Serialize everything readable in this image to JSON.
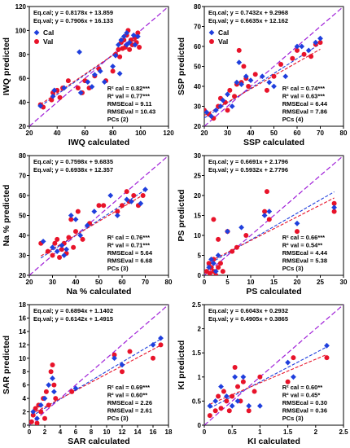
{
  "colors": {
    "cal": "#1f3fdd",
    "val": "#e8132a",
    "one_to_one": "#a020d8",
    "cal_fit": "#1f3fdd",
    "val_fit": "#e8132a"
  },
  "legend": {
    "cal": "Cal",
    "val": "Val"
  },
  "chart_data": [
    {
      "id": "iwq",
      "type": "scatter",
      "xlabel": "IWQ calculated",
      "ylabel": "IWQ predicted",
      "xlim": [
        20,
        120
      ],
      "ylim": [
        20,
        120
      ],
      "xticks": [
        "20",
        "40",
        "60",
        "80",
        "100",
        "120"
      ],
      "yticks": [
        "20",
        "40",
        "60",
        "80",
        "100",
        "120"
      ],
      "eq_cal": "Eq.cal; y = 0.8178x + 13.859",
      "eq_val": "Eq.val; y = 0.7906x + 16.133",
      "fit_cal": [
        0.8178,
        13.859
      ],
      "fit_val": [
        0.7906,
        16.133
      ],
      "stats": [
        "R² cal = 0.82***",
        "R² val = 0.77***",
        "RMSEcal = 9.11",
        "RMSEval = 10.43",
        "PCs (2)"
      ],
      "show_legend": true,
      "cal": [
        [
          28,
          37
        ],
        [
          37,
          45
        ],
        [
          38,
          50
        ],
        [
          45,
          52
        ],
        [
          56,
          82
        ],
        [
          57,
          48
        ],
        [
          62,
          57
        ],
        [
          65,
          53
        ],
        [
          67,
          63
        ],
        [
          71,
          66
        ],
        [
          74,
          57
        ],
        [
          80,
          70
        ],
        [
          82,
          79
        ],
        [
          84,
          88
        ],
        [
          85,
          64
        ],
        [
          88,
          95
        ],
        [
          90,
          88
        ],
        [
          92,
          90
        ],
        [
          95,
          96
        ],
        [
          96,
          88
        ],
        [
          98,
          95
        ],
        [
          90,
          98
        ],
        [
          86,
          92
        ]
      ],
      "val": [
        [
          28,
          38
        ],
        [
          30,
          36
        ],
        [
          36,
          42
        ],
        [
          37,
          48
        ],
        [
          40,
          50
        ],
        [
          42,
          44
        ],
        [
          44,
          52
        ],
        [
          48,
          58
        ],
        [
          55,
          52
        ],
        [
          58,
          48
        ],
        [
          60,
          58
        ],
        [
          63,
          52
        ],
        [
          67,
          62
        ],
        [
          70,
          68
        ],
        [
          75,
          58
        ],
        [
          80,
          66
        ],
        [
          82,
          80
        ],
        [
          84,
          84
        ],
        [
          86,
          90
        ],
        [
          88,
          92
        ],
        [
          89,
          86
        ],
        [
          90,
          96
        ],
        [
          92,
          84
        ],
        [
          93,
          92
        ],
        [
          94,
          88
        ],
        [
          96,
          94
        ],
        [
          97,
          90
        ],
        [
          99,
          86
        ],
        [
          98,
          98
        ],
        [
          91,
          100
        ],
        [
          87,
          85
        ],
        [
          85,
          78
        ]
      ]
    },
    {
      "id": "ssp",
      "type": "scatter",
      "xlabel": "SSP calculated",
      "ylabel": "SSP predicted",
      "xlim": [
        20,
        80
      ],
      "ylim": [
        20,
        80
      ],
      "xticks": [
        "20",
        "30",
        "40",
        "50",
        "60",
        "70",
        "80"
      ],
      "yticks": [
        "20",
        "30",
        "40",
        "50",
        "60",
        "70",
        "80"
      ],
      "eq_cal": "Eq.cal; y = 0.7432x + 9.2968",
      "eq_val": "Eq.val; y = 0.6635x + 12.162",
      "fit_cal": [
        0.7432,
        9.2968
      ],
      "fit_val": [
        0.6635,
        12.162
      ],
      "stats": [
        "R² cal = 0.74***",
        "R² val = 0.63***",
        "RMSEcal = 6.44",
        "RMSEval = 7.86",
        "PCs (4)"
      ],
      "show_legend": true,
      "cal": [
        [
          21,
          27
        ],
        [
          23,
          25
        ],
        [
          25,
          28
        ],
        [
          27,
          30
        ],
        [
          28,
          33
        ],
        [
          30,
          36
        ],
        [
          32,
          30
        ],
        [
          34,
          42
        ],
        [
          35,
          52
        ],
        [
          36,
          41
        ],
        [
          38,
          45
        ],
        [
          40,
          43
        ],
        [
          45,
          45
        ],
        [
          48,
          42
        ],
        [
          50,
          40
        ],
        [
          55,
          45
        ],
        [
          60,
          60
        ],
        [
          62,
          60
        ],
        [
          65,
          58
        ],
        [
          68,
          62
        ],
        [
          70,
          64
        ]
      ],
      "val": [
        [
          20,
          28
        ],
        [
          22,
          26
        ],
        [
          24,
          24
        ],
        [
          26,
          30
        ],
        [
          27,
          34
        ],
        [
          29,
          32
        ],
        [
          30,
          28
        ],
        [
          31,
          38
        ],
        [
          33,
          35
        ],
        [
          34,
          41
        ],
        [
          35,
          58
        ],
        [
          36,
          42
        ],
        [
          37,
          50
        ],
        [
          38,
          44
        ],
        [
          39,
          40
        ],
        [
          42,
          46
        ],
        [
          47,
          38
        ],
        [
          50,
          45
        ],
        [
          53,
          51
        ],
        [
          58,
          54
        ],
        [
          60,
          58
        ],
        [
          63,
          56
        ],
        [
          66,
          55
        ],
        [
          68,
          61
        ],
        [
          70,
          62
        ]
      ]
    },
    {
      "id": "na",
      "type": "scatter",
      "xlabel": "Na % calculated",
      "ylabel": "Na % predicted",
      "xlim": [
        20,
        80
      ],
      "ylim": [
        20,
        80
      ],
      "xticks": [
        "20",
        "30",
        "40",
        "50",
        "60",
        "70",
        "80"
      ],
      "yticks": [
        "20",
        "30",
        "40",
        "50",
        "60",
        "70",
        "80"
      ],
      "eq_cal": "Eq.cal; y = 0.7598x + 9.6835",
      "eq_val": "Eq.val; y = 0.6938x + 12.357",
      "fit_cal": [
        0.7598,
        9.6835
      ],
      "fit_val": [
        0.6938,
        12.357
      ],
      "stats": [
        "R² cal = 0.76***",
        "R² val = 0.71***",
        "RMSEcal = 5.64",
        "RMSEval = 6.68",
        "PCs (3)"
      ],
      "show_legend": false,
      "cal": [
        [
          26,
          37
        ],
        [
          30,
          34
        ],
        [
          32,
          32
        ],
        [
          34,
          35
        ],
        [
          35,
          30
        ],
        [
          36,
          33
        ],
        [
          38,
          50
        ],
        [
          40,
          48
        ],
        [
          42,
          40
        ],
        [
          45,
          45
        ],
        [
          48,
          52
        ],
        [
          55,
          60
        ],
        [
          58,
          50
        ],
        [
          62,
          58
        ],
        [
          64,
          57
        ],
        [
          68,
          56
        ],
        [
          70,
          63
        ]
      ],
      "val": [
        [
          25,
          36
        ],
        [
          28,
          32
        ],
        [
          30,
          30
        ],
        [
          31,
          36
        ],
        [
          32,
          38
        ],
        [
          33,
          29
        ],
        [
          34,
          33
        ],
        [
          35,
          36
        ],
        [
          36,
          31
        ],
        [
          37,
          39
        ],
        [
          38,
          48
        ],
        [
          39,
          34
        ],
        [
          40,
          42
        ],
        [
          41,
          52
        ],
        [
          43,
          38
        ],
        [
          46,
          46
        ],
        [
          50,
          55
        ],
        [
          52,
          55
        ],
        [
          58,
          52
        ],
        [
          60,
          55
        ],
        [
          62,
          62
        ],
        [
          63,
          57
        ],
        [
          65,
          60
        ],
        [
          67,
          55
        ],
        [
          69,
          60
        ]
      ]
    },
    {
      "id": "ps",
      "type": "scatter",
      "xlabel": "PS calculated",
      "ylabel": "PS predicted",
      "xlim": [
        0,
        30
      ],
      "ylim": [
        0,
        30
      ],
      "xticks": [
        "0",
        "5",
        "10",
        "15",
        "20",
        "25",
        "30"
      ],
      "yticks": [
        "0",
        "5",
        "10",
        "15",
        "20",
        "25",
        "30"
      ],
      "eq_cal": "Eq.cal; y = 0.6691x + 2.1796",
      "eq_val": "Eq.val; y = 0.5932x + 2.7796",
      "fit_cal": [
        0.6691,
        2.1796
      ],
      "fit_val": [
        0.5932,
        2.7796
      ],
      "stats": [
        "R² cal = 0.66***",
        "R² val = 0.54**",
        "RMSEcal = 4.44",
        "RMSEval = 5.38",
        "PCs (3)"
      ],
      "show_legend": false,
      "cal": [
        [
          1,
          2
        ],
        [
          1.5,
          4
        ],
        [
          2,
          3
        ],
        [
          2.5,
          1
        ],
        [
          3,
          5
        ],
        [
          5,
          11
        ],
        [
          8,
          12
        ],
        [
          13,
          15
        ],
        [
          14,
          16
        ],
        [
          20,
          13
        ],
        [
          28,
          17
        ]
      ],
      "val": [
        [
          0.5,
          1
        ],
        [
          1,
          3
        ],
        [
          1.2,
          0.5
        ],
        [
          1.5,
          2
        ],
        [
          2,
          1
        ],
        [
          2,
          4
        ],
        [
          2.5,
          0
        ],
        [
          3,
          2
        ],
        [
          3.5,
          3
        ],
        [
          4,
          1
        ],
        [
          5,
          11
        ],
        [
          6,
          6
        ],
        [
          7,
          7
        ],
        [
          9,
          10
        ],
        [
          13,
          16
        ],
        [
          13.5,
          21
        ],
        [
          14,
          14
        ],
        [
          20,
          11
        ],
        [
          28,
          16
        ],
        [
          28,
          18
        ],
        [
          2,
          14
        ],
        [
          3,
          9
        ]
      ]
    },
    {
      "id": "sar",
      "type": "scatter",
      "xlabel": "SAR calculated",
      "ylabel": "SAR predicted",
      "xlim": [
        0,
        18
      ],
      "ylim": [
        0,
        18
      ],
      "xticks": [
        "0",
        "2",
        "4",
        "6",
        "8",
        "10",
        "12",
        "14",
        "16",
        "18"
      ],
      "yticks": [
        "0",
        "2",
        "4",
        "6",
        "8",
        "10",
        "12",
        "14",
        "16",
        "18"
      ],
      "eq_cal": "Eq.cal; y = 0.6894x + 1.1402",
      "eq_val": "Eq.val; y = 0.6142x + 1.4915",
      "fit_cal": [
        0.6894,
        1.1402
      ],
      "fit_val": [
        0.6142,
        1.4915
      ],
      "stats": [
        "R² cal = 0.69***",
        "R² val = 0.60**",
        "RMSEcal = 2.26",
        "RMSEval = 2.61",
        "PCs (3)"
      ],
      "show_legend": false,
      "cal": [
        [
          0.5,
          2
        ],
        [
          1,
          1
        ],
        [
          1.5,
          3
        ],
        [
          2,
          4
        ],
        [
          2.5,
          6
        ],
        [
          3,
          7
        ],
        [
          3.2,
          5
        ],
        [
          6,
          5.5
        ],
        [
          11,
          10
        ],
        [
          12,
          9
        ],
        [
          16,
          12
        ],
        [
          17,
          13
        ]
      ],
      "val": [
        [
          0.3,
          0.5
        ],
        [
          0.5,
          1.5
        ],
        [
          0.8,
          2.5
        ],
        [
          1,
          0.3
        ],
        [
          1.2,
          3
        ],
        [
          1.5,
          2
        ],
        [
          1.8,
          4
        ],
        [
          2,
          1
        ],
        [
          2.2,
          5
        ],
        [
          2.5,
          3
        ],
        [
          2.8,
          8
        ],
        [
          3,
          9
        ],
        [
          3.2,
          6
        ],
        [
          3.4,
          4
        ],
        [
          5.5,
          5
        ],
        [
          11,
          10.5
        ],
        [
          12,
          8
        ],
        [
          13,
          11
        ],
        [
          16,
          10
        ],
        [
          17,
          12
        ]
      ]
    },
    {
      "id": "kl",
      "type": "scatter",
      "xlabel": "KI calculated",
      "ylabel": "KI predicted",
      "xlim": [
        0,
        2.5
      ],
      "ylim": [
        0,
        2.5
      ],
      "xticks": [
        "0",
        "0.5",
        "1",
        "1.5",
        "2",
        "2.5"
      ],
      "yticks": [
        "0",
        "0.5",
        "1",
        "1.5",
        "2",
        "2.5"
      ],
      "eq_cal": "Eq.cal; y = 0.6043x + 0.2932",
      "eq_val": "Eq.val; y = 0.4905x + 0.3865",
      "fit_cal": [
        0.6043,
        0.2932
      ],
      "fit_val": [
        0.4905,
        0.3865
      ],
      "stats": [
        "R² cal = 0.60**",
        "R² val = 0.45*",
        "RMSEcal = 0.30",
        "RMSEval = 0.36",
        "PCs (3)"
      ],
      "show_legend": false,
      "cal": [
        [
          0.1,
          0.4
        ],
        [
          0.2,
          0.5
        ],
        [
          0.3,
          0.8
        ],
        [
          0.4,
          0.6
        ],
        [
          0.5,
          0.4
        ],
        [
          0.55,
          1.0
        ],
        [
          0.6,
          0.5
        ],
        [
          0.7,
          1.0
        ],
        [
          0.8,
          0.4
        ],
        [
          1.0,
          0.4
        ],
        [
          1.5,
          1.3
        ],
        [
          1.6,
          1.0
        ],
        [
          2.2,
          1.65
        ]
      ],
      "val": [
        [
          0.1,
          0.2
        ],
        [
          0.2,
          0.3
        ],
        [
          0.25,
          0.6
        ],
        [
          0.3,
          0.35
        ],
        [
          0.35,
          0.7
        ],
        [
          0.4,
          0.5
        ],
        [
          0.45,
          0.3
        ],
        [
          0.5,
          0.6
        ],
        [
          0.55,
          1.2
        ],
        [
          0.6,
          0.8
        ],
        [
          0.65,
          0.5
        ],
        [
          0.7,
          0.9
        ],
        [
          0.8,
          0.3
        ],
        [
          0.9,
          0.7
        ],
        [
          1.0,
          1.0
        ],
        [
          1.5,
          0.9
        ],
        [
          1.6,
          1.4
        ],
        [
          2.2,
          1.4
        ]
      ]
    }
  ]
}
